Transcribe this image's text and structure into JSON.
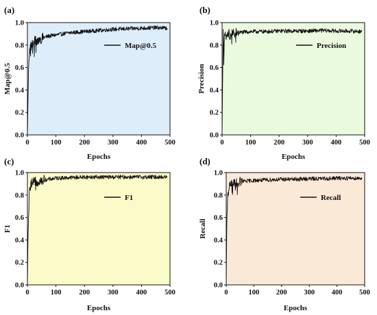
{
  "chart_data": [
    {
      "type": "line",
      "panel_label": "(a)",
      "xlabel": "Epochs",
      "ylabel": "Map@0.5",
      "xlim": [
        0,
        500
      ],
      "ylim": [
        0.0,
        1.0
      ],
      "xticks": [
        "0",
        "100",
        "200",
        "300",
        "400",
        "500"
      ],
      "yticks": [
        "0.0",
        "0.2",
        "0.4",
        "0.6",
        "0.8",
        "1.0"
      ],
      "background": "#ddeefa",
      "legend_position": "top-right",
      "series": [
        {
          "name": "Map@0.5",
          "color": "#111111",
          "x": [
            0,
            2,
            4,
            6,
            8,
            10,
            15,
            20,
            30,
            40,
            50,
            75,
            100,
            150,
            200,
            250,
            300,
            350,
            400,
            450,
            490
          ],
          "y": [
            0.0,
            0.3,
            0.55,
            0.7,
            0.75,
            0.78,
            0.8,
            0.82,
            0.84,
            0.85,
            0.86,
            0.88,
            0.89,
            0.91,
            0.92,
            0.93,
            0.94,
            0.945,
            0.95,
            0.955,
            0.95
          ]
        }
      ]
    },
    {
      "type": "line",
      "panel_label": "(b)",
      "xlabel": "Epochs",
      "ylabel": "Precision",
      "xlim": [
        0,
        500
      ],
      "ylim": [
        0.0,
        1.0
      ],
      "xticks": [
        "0",
        "100",
        "200",
        "300",
        "400",
        "500"
      ],
      "yticks": [
        "0.0",
        "0.2",
        "0.4",
        "0.6",
        "0.8",
        "1.0"
      ],
      "background": "#eafadf",
      "legend_position": "top-right",
      "series": [
        {
          "name": "Precision",
          "color": "#111111",
          "x": [
            0,
            2,
            4,
            6,
            8,
            10,
            15,
            20,
            30,
            40,
            50,
            75,
            100,
            150,
            200,
            250,
            300,
            350,
            400,
            450,
            490
          ],
          "y": [
            0.0,
            0.5,
            0.9,
            0.7,
            0.85,
            0.88,
            0.86,
            0.9,
            0.89,
            0.9,
            0.91,
            0.915,
            0.92,
            0.92,
            0.925,
            0.925,
            0.925,
            0.93,
            0.925,
            0.925,
            0.92
          ]
        }
      ]
    },
    {
      "type": "line",
      "panel_label": "(c)",
      "xlabel": "Epochs",
      "ylabel": "F1",
      "xlim": [
        0,
        500
      ],
      "ylim": [
        0.0,
        1.0
      ],
      "xticks": [
        "0",
        "100",
        "200",
        "300",
        "400",
        "500"
      ],
      "yticks": [
        "0.0",
        "0.2",
        "0.4",
        "0.6",
        "0.8",
        "1.0"
      ],
      "background": "#fbfbc9",
      "legend_position": "middle-right",
      "series": [
        {
          "name": "F1",
          "color": "#111111",
          "x": [
            0,
            2,
            4,
            6,
            8,
            10,
            15,
            20,
            30,
            40,
            50,
            75,
            100,
            150,
            200,
            250,
            300,
            350,
            400,
            450,
            490
          ],
          "y": [
            0.0,
            0.4,
            0.6,
            0.75,
            0.85,
            0.88,
            0.9,
            0.91,
            0.92,
            0.93,
            0.93,
            0.94,
            0.95,
            0.955,
            0.96,
            0.96,
            0.96,
            0.96,
            0.96,
            0.96,
            0.96
          ]
        }
      ]
    },
    {
      "type": "line",
      "panel_label": "(d)",
      "xlabel": "Epochs",
      "ylabel": "Recall",
      "xlim": [
        0,
        500
      ],
      "ylim": [
        0.0,
        1.0
      ],
      "xticks": [
        "0",
        "100",
        "200",
        "300",
        "400",
        "500"
      ],
      "yticks": [
        "0.0",
        "0.2",
        "0.4",
        "0.6",
        "0.8",
        "1.0"
      ],
      "background": "#fbe9d7",
      "legend_position": "top-right",
      "series": [
        {
          "name": "Recall",
          "color": "#111111",
          "x": [
            0,
            2,
            4,
            6,
            8,
            10,
            15,
            20,
            30,
            40,
            50,
            75,
            100,
            150,
            200,
            250,
            300,
            350,
            400,
            450,
            490
          ],
          "y": [
            0.0,
            0.5,
            0.7,
            0.8,
            0.84,
            0.86,
            0.88,
            0.89,
            0.9,
            0.91,
            0.92,
            0.925,
            0.93,
            0.935,
            0.94,
            0.94,
            0.945,
            0.945,
            0.95,
            0.95,
            0.95
          ]
        }
      ]
    }
  ]
}
